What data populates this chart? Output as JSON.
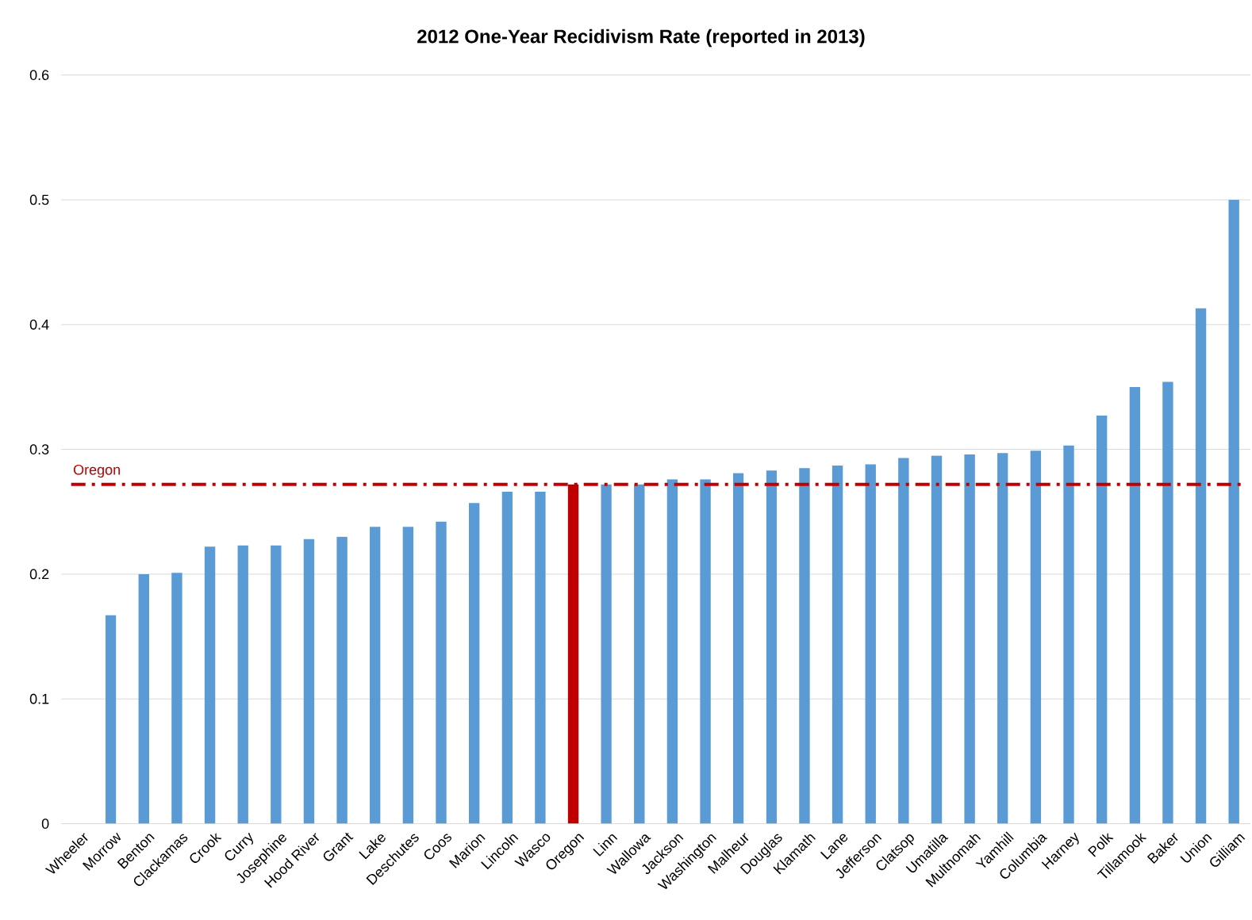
{
  "chart_data": {
    "type": "bar",
    "title": "2012 One-Year Recidivism Rate (reported in 2013)",
    "categories": [
      "Wheeler",
      "Morrow",
      "Benton",
      "Clackamas",
      "Crook",
      "Curry",
      "Josephine",
      "Hood River",
      "Grant",
      "Lake",
      "Deschutes",
      "Coos",
      "Marion",
      "Lincoln",
      "Wasco",
      "Oregon",
      "Linn",
      "Wallowa",
      "Jackson",
      "Washington",
      "Malheur",
      "Douglas",
      "Klamath",
      "Lane",
      "Jefferson",
      "Clatsop",
      "Umatilla",
      "Multnomah",
      "Yamhill",
      "Columbia",
      "Harney",
      "Polk",
      "Tillamook",
      "Baker",
      "Union",
      "Gilliam"
    ],
    "values": [
      0,
      0.167,
      0.2,
      0.201,
      0.222,
      0.223,
      0.223,
      0.228,
      0.23,
      0.238,
      0.238,
      0.242,
      0.257,
      0.266,
      0.266,
      0.272,
      0.272,
      0.272,
      0.276,
      0.276,
      0.281,
      0.283,
      0.285,
      0.287,
      0.288,
      0.293,
      0.295,
      0.296,
      0.297,
      0.299,
      0.303,
      0.327,
      0.35,
      0.354,
      0.413,
      0.5
    ],
    "colors": [
      "#5b9bd5",
      "#5b9bd5",
      "#5b9bd5",
      "#5b9bd5",
      "#5b9bd5",
      "#5b9bd5",
      "#5b9bd5",
      "#5b9bd5",
      "#5b9bd5",
      "#5b9bd5",
      "#5b9bd5",
      "#5b9bd5",
      "#5b9bd5",
      "#5b9bd5",
      "#5b9bd5",
      "#c00000",
      "#5b9bd5",
      "#5b9bd5",
      "#5b9bd5",
      "#5b9bd5",
      "#5b9bd5",
      "#5b9bd5",
      "#5b9bd5",
      "#5b9bd5",
      "#5b9bd5",
      "#5b9bd5",
      "#5b9bd5",
      "#5b9bd5",
      "#5b9bd5",
      "#5b9bd5",
      "#5b9bd5",
      "#5b9bd5",
      "#5b9bd5",
      "#5b9bd5",
      "#5b9bd5",
      "#5b9bd5"
    ],
    "ylim": [
      0,
      0.6
    ],
    "yticks": [
      0,
      0.1,
      0.2,
      0.3,
      0.4,
      0.5,
      0.6
    ],
    "grid": "y",
    "ref_lines": [
      {
        "axis": "y",
        "value": 0.272,
        "label": "Oregon",
        "color": "#c00000",
        "line_style": "dashdot"
      }
    ]
  }
}
